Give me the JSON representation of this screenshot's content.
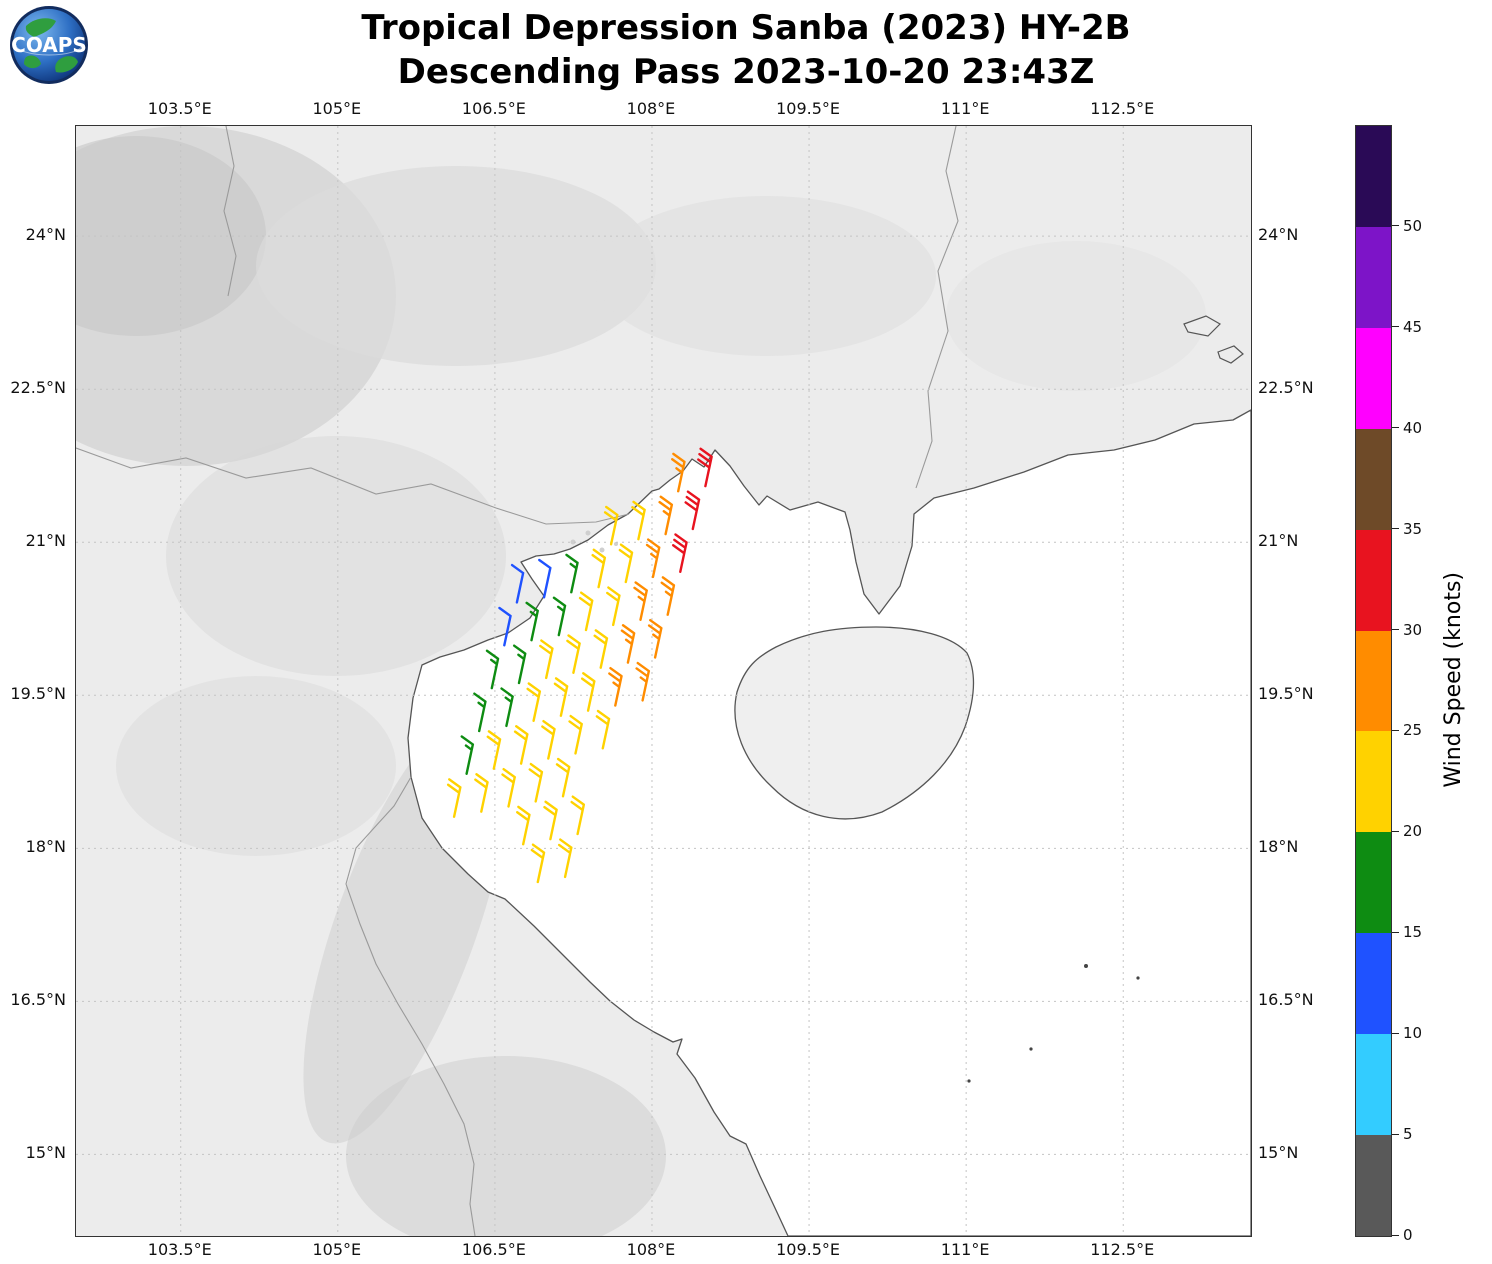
{
  "header": {
    "logo_text": "COAPS",
    "title_line1": "Tropical Depression Sanba (2023) HY-2B",
    "title_line2": "Descending Pass 2023-10-20 23:43Z"
  },
  "chart_data": {
    "type": "map_wind_barbs",
    "projection": "lat-lon",
    "region": "Gulf of Tonkin / northern Vietnam / southern China / Hainan",
    "lon_axis": {
      "range": [
        102.5,
        113.72
      ],
      "ticks": [
        {
          "value": 103.5,
          "label": "103.5°E"
        },
        {
          "value": 105,
          "label": "105°E"
        },
        {
          "value": 106.5,
          "label": "106.5°E"
        },
        {
          "value": 108,
          "label": "108°E"
        },
        {
          "value": 109.5,
          "label": "109.5°E"
        },
        {
          "value": 111,
          "label": "111°E"
        },
        {
          "value": 112.5,
          "label": "112.5°E"
        }
      ]
    },
    "lat_axis": {
      "range": [
        14.2,
        25.08
      ],
      "ticks": [
        {
          "value": 24,
          "label": "24°N"
        },
        {
          "value": 22.5,
          "label": "22.5°N"
        },
        {
          "value": 21,
          "label": "21°N"
        },
        {
          "value": 19.5,
          "label": "19.5°N"
        },
        {
          "value": 18,
          "label": "18°N"
        },
        {
          "value": 16.5,
          "label": "16.5°N"
        },
        {
          "value": 15,
          "label": "15°N"
        }
      ]
    },
    "colorbar": {
      "label": "Wind Speed (knots)",
      "range": [
        0,
        55
      ],
      "tick_values": [
        0,
        5,
        10,
        15,
        20,
        25,
        30,
        35,
        40,
        45,
        50
      ],
      "segments": [
        {
          "from": 0,
          "to": 5,
          "color": "#595959"
        },
        {
          "from": 5,
          "to": 10,
          "color": "#33ccff"
        },
        {
          "from": 10,
          "to": 15,
          "color": "#1f52ff"
        },
        {
          "from": 15,
          "to": 20,
          "color": "#0e8c12"
        },
        {
          "from": 20,
          "to": 25,
          "color": "#ffd200"
        },
        {
          "from": 25,
          "to": 30,
          "color": "#ff8c00"
        },
        {
          "from": 30,
          "to": 35,
          "color": "#e8131f"
        },
        {
          "from": 35,
          "to": 40,
          "color": "#6e4a28"
        },
        {
          "from": 40,
          "to": 45,
          "color": "#ff00ff"
        },
        {
          "from": 45,
          "to": 50,
          "color": "#7d14c8"
        },
        {
          "from": 50,
          "to": 55,
          "color": "#2a0a56"
        }
      ]
    },
    "wind_barbs": {
      "legend": "letter codes per barb: B=10-15kt blue, G=15-20kt green, Y=20-25kt yellow, O=25-30kt orange, R=30-35kt red, .=no data",
      "speeds_knots": {
        "B": 12,
        "G": 17,
        "Y": 22,
        "O": 27,
        "R": 32
      },
      "colors": {
        "B": "#1f52ff",
        "G": "#0e8c12",
        "Y": "#ffd200",
        "O": "#ff8c00",
        "R": "#e8131f"
      },
      "barb_direction_deg_from_north": 12,
      "grid": {
        "origin": {
          "lon": 106.95,
          "lat": 21.25
        },
        "col_step": {
          "dlon": 0.26,
          "dlat": 0.05
        },
        "row_step": {
          "dlon": -0.12,
          "dlat": -0.42
        },
        "rows": [
          ".....OR",
          "...YYOR",
          "BBGYYOR",
          "BGGYYOO",
          "GGYYYOO",
          "GGYYYOO",
          "GYYYYY.",
          "YYYYY..",
          "...YYY.",
          "....YY."
        ]
      }
    }
  }
}
